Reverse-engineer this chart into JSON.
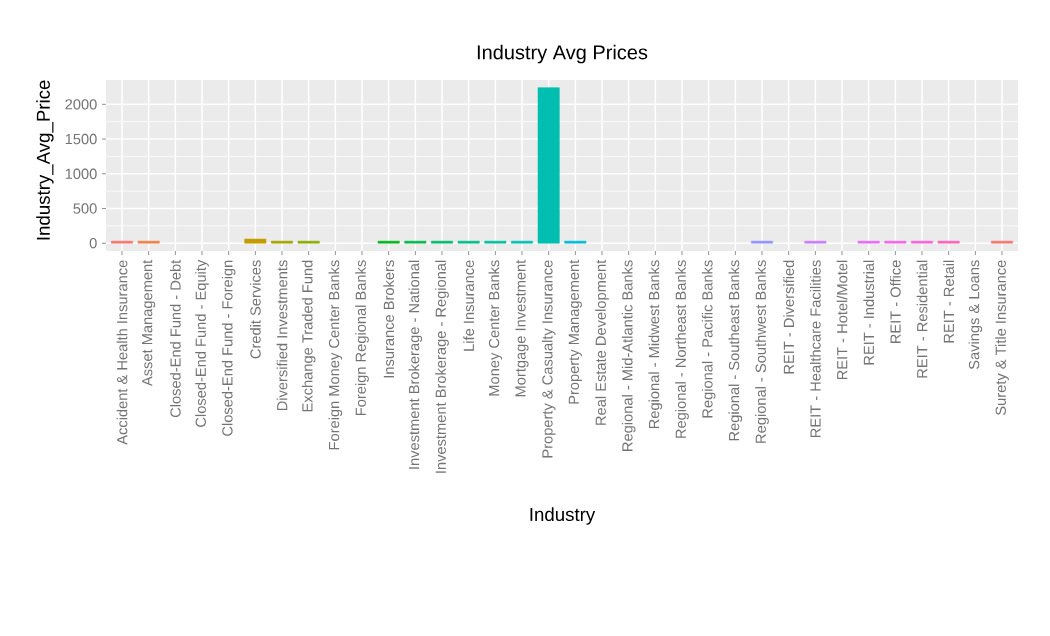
{
  "chart_data": {
    "type": "bar",
    "title": "Industry Avg Prices",
    "xlabel": "Industry",
    "ylabel": "Industry_Avg_Price",
    "categories": [
      "Accident & Health Insurance",
      "Asset Management",
      "Closed-End Fund - Debt",
      "Closed-End Fund - Equity",
      "Closed-End Fund - Foreign",
      "Credit Services",
      "Diversified Investments",
      "Exchange Traded Fund",
      "Foreign Money Center Banks",
      "Foreign Regional Banks",
      "Insurance Brokers",
      "Investment Brokerage - National",
      "Investment Brokerage - Regional",
      "Life Insurance",
      "Money Center Banks",
      "Mortgage Investment",
      "Property & Casualty Insurance",
      "Property Management",
      "Real Estate Development",
      "Regional - Mid-Atlantic Banks",
      "Regional - Midwest Banks",
      "Regional - Northeast Banks",
      "Regional - Pacific Banks",
      "Regional - Southeast Banks",
      "Regional - Southwest Banks",
      "REIT - Diversified",
      "REIT - Healthcare Facilities",
      "REIT - Hotel/Motel",
      "REIT - Industrial",
      "REIT - Office",
      "REIT - Residential",
      "REIT - Retail",
      "Savings & Loans",
      "Surety & Title Insurance"
    ],
    "values": [
      30,
      30,
      null,
      null,
      null,
      60,
      30,
      30,
      null,
      null,
      30,
      30,
      30,
      30,
      30,
      30,
      2240,
      30,
      null,
      null,
      null,
      null,
      null,
      null,
      30,
      null,
      30,
      null,
      30,
      30,
      30,
      30,
      null,
      30
    ],
    "colors": [
      "#F8766D",
      "#EF7F49",
      "#E58700",
      "#D89000",
      "#C99800",
      "#C49A00",
      "#A3A500",
      "#8CAB00",
      "#6FB000",
      "#45B500",
      "#00B81F",
      "#00BB4E",
      "#00BD6C",
      "#00BF86",
      "#00C09D",
      "#00C0B2",
      "#00BFB0",
      "#00BCD6",
      "#00B8E5",
      "#00B2F3",
      "#00ABFD",
      "#00A3FF",
      "#619CFF",
      "#8F91FF",
      "#9590FF",
      "#B983FF",
      "#CB7CF9",
      "#D874FD",
      "#E76BF3",
      "#F166E8",
      "#FA62DB",
      "#FF62BC",
      "#FF65AE",
      "#F8766D"
    ],
    "ylim": [
      -112,
      2350
    ],
    "yticks": [
      0,
      500,
      1000,
      1500,
      2000
    ],
    "grid": true
  }
}
